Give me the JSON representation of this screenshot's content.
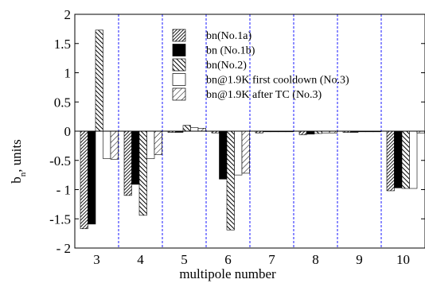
{
  "chart_data": {
    "type": "bar",
    "xlabel": "multipole number",
    "ylabel_main": "b",
    "ylabel_sub": "n",
    "ylabel_unit": ", units",
    "ylim": [
      -2,
      2
    ],
    "yticks": [
      -2,
      -1.5,
      -1,
      -0.5,
      0,
      0.5,
      1,
      1.5,
      2
    ],
    "ytick_labels": [
      "- 2",
      "-1.5",
      "- 1",
      "-0.5",
      "0",
      "0.5",
      "1",
      "1.5",
      "2"
    ],
    "categories": [
      "3",
      "4",
      "5",
      "6",
      "7",
      "8",
      "9",
      "10"
    ],
    "grid": "vertical dashed separators between multipoles",
    "legend_position": "top-center",
    "series": [
      {
        "name": "bn(No.1a)",
        "pattern": "hatch-dense",
        "values": [
          -1.67,
          -1.1,
          -0.02,
          -0.03,
          -0.03,
          -0.06,
          -0.02,
          -1.02
        ]
      },
      {
        "name": "bn (No.1b)",
        "pattern": "solid-black",
        "values": [
          -1.59,
          -0.91,
          -0.02,
          -0.82,
          -0.01,
          -0.05,
          -0.02,
          -0.97
        ]
      },
      {
        "name": "bn(No.2)",
        "pattern": "hatch-wide",
        "values": [
          1.73,
          -1.44,
          0.1,
          -1.69,
          -0.01,
          -0.04,
          -0.01,
          -0.98
        ]
      },
      {
        "name": "bn@1.9K first cooldown (No.3)",
        "pattern": "white",
        "values": [
          -0.47,
          -0.47,
          0.06,
          -0.75,
          0.0,
          -0.03,
          0.0,
          -0.98
        ]
      },
      {
        "name": "bn@1.9K after TC (No.3)",
        "pattern": "hatch-sparse",
        "values": [
          -0.48,
          -0.4,
          0.05,
          -0.72,
          0.0,
          -0.03,
          0.0,
          -0.03
        ]
      }
    ]
  }
}
